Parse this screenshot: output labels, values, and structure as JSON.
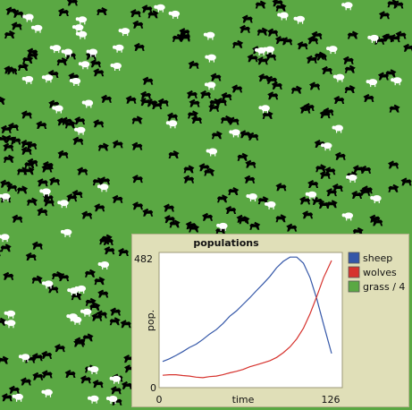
{
  "plot": {
    "title": "populations",
    "ylabel": "pop.",
    "xlabel": "time",
    "x_min_label": "0",
    "x_max_label": "126",
    "y_min_label": "0",
    "y_max_label": "482"
  },
  "colors": {
    "grass": "#5aa843",
    "sheep": "#ffffff",
    "wolves": "#000000",
    "sheep_line": "#3457a8",
    "wolves_line": "#d6322d",
    "grass_legend": "#5aa843"
  },
  "chart_data": {
    "type": "line",
    "title": "populations",
    "xlabel": "time",
    "ylabel": "pop.",
    "xlim": [
      0,
      126
    ],
    "ylim": [
      0,
      482
    ],
    "legend_position": "right",
    "series": [
      {
        "name": "sheep",
        "color": "#3457a8",
        "x": [
          0,
          5,
          10,
          15,
          20,
          25,
          30,
          35,
          40,
          45,
          50,
          55,
          60,
          65,
          70,
          75,
          80,
          85,
          90,
          95,
          100,
          105,
          110,
          115,
          120,
          126
        ],
        "y": [
          85,
          95,
          108,
          122,
          138,
          150,
          168,
          188,
          205,
          228,
          255,
          275,
          300,
          325,
          352,
          378,
          405,
          438,
          462,
          478,
          478,
          455,
          400,
          320,
          225,
          115
        ]
      },
      {
        "name": "wolves",
        "color": "#d6322d",
        "x": [
          0,
          5,
          10,
          15,
          20,
          25,
          30,
          35,
          40,
          45,
          50,
          55,
          60,
          65,
          70,
          75,
          80,
          85,
          90,
          95,
          100,
          105,
          110,
          115,
          120,
          126
        ],
        "y": [
          33,
          35,
          35,
          32,
          30,
          26,
          24,
          28,
          30,
          35,
          42,
          48,
          55,
          65,
          72,
          80,
          88,
          100,
          118,
          140,
          170,
          210,
          265,
          330,
          400,
          465
        ]
      },
      {
        "name": "grass / 4",
        "color": "#5aa843",
        "x": [],
        "y": []
      }
    ]
  }
}
